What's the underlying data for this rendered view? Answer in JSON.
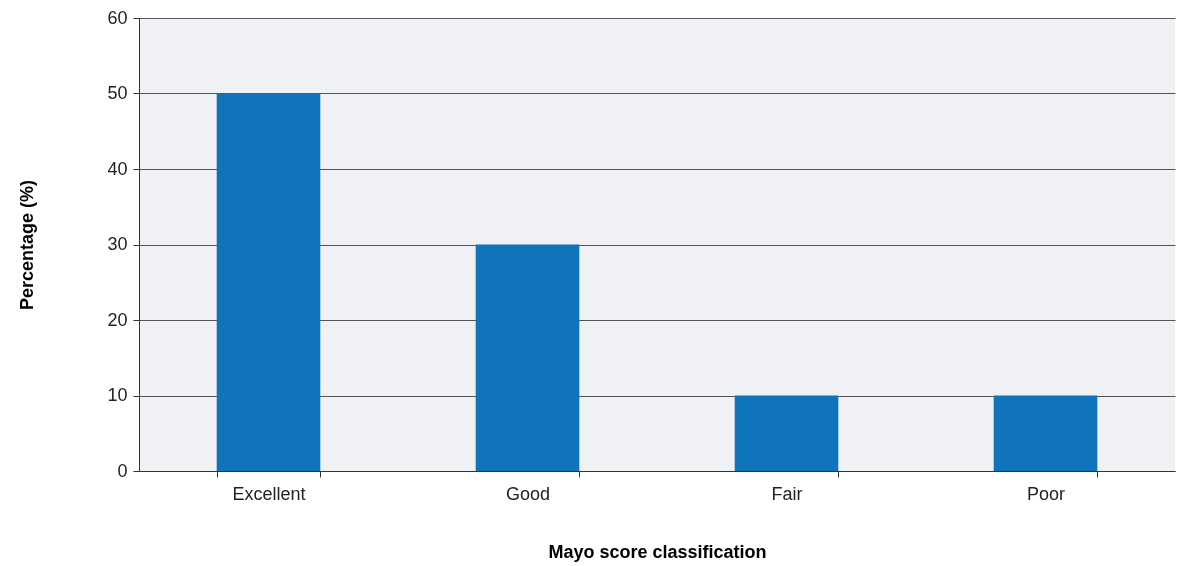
{
  "chart_data": {
    "type": "bar",
    "xlabel": "Mayo score classification",
    "ylabel": "Percentage (%)",
    "categories": [
      "Excellent",
      "Good",
      "Fair",
      "Poor"
    ],
    "values": [
      50,
      30,
      10,
      10
    ],
    "color": "#1074bc",
    "ylim": [
      0,
      60
    ],
    "yticks": [
      0,
      10,
      20,
      30,
      40,
      50,
      60
    ],
    "grid": "y"
  }
}
